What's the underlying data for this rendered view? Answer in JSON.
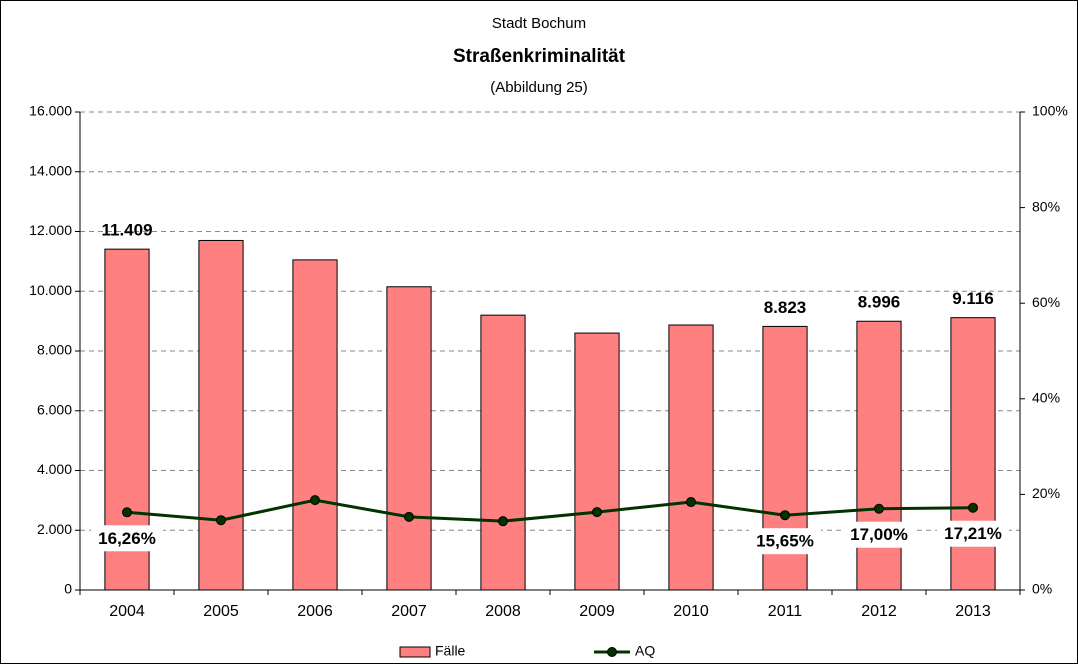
{
  "chart_data": {
    "type": "bar",
    "title": "Straßenkriminalität",
    "subtitle": "Stadt Bochum",
    "annotation": "(Abbildung 25)",
    "categories": [
      "2004",
      "2005",
      "2006",
      "2007",
      "2008",
      "2009",
      "2010",
      "2011",
      "2012",
      "2013"
    ],
    "series": [
      {
        "name": "Fälle",
        "type": "bar",
        "color": "#ff8080",
        "values": [
          11409,
          11700,
          11050,
          10150,
          9200,
          8600,
          8870,
          8823,
          8996,
          9116
        ],
        "value_labels": [
          "11.409",
          null,
          null,
          null,
          null,
          null,
          null,
          "8.823",
          "8.996",
          "9.116"
        ]
      },
      {
        "name": "AQ",
        "type": "line",
        "axis": "y2",
        "color": "#003300",
        "values": [
          16.26,
          14.6,
          18.8,
          15.3,
          14.4,
          16.3,
          18.4,
          15.65,
          17.0,
          17.21
        ],
        "value_labels": [
          "16,26%",
          null,
          null,
          null,
          null,
          null,
          null,
          "15,65%",
          "17,00%",
          "17,21%"
        ]
      }
    ],
    "ylim": [
      0,
      16000
    ],
    "yticks": [
      0,
      {
        "value": 2000,
        "label": "2.000"
      },
      {
        "value": 4000,
        "label": "4.000"
      },
      {
        "value": 6000,
        "label": "6.000"
      },
      {
        "value": 8000,
        "label": "8.000"
      },
      {
        "value": 10000,
        "label": "10.000"
      },
      {
        "value": 12000,
        "label": "12.000"
      },
      {
        "value": 14000,
        "label": "14.000"
      },
      {
        "value": 16000,
        "label": "16.000"
      }
    ],
    "y2lim": [
      0,
      100
    ],
    "y2ticks": [
      {
        "value": 0,
        "label": "0%"
      },
      {
        "value": 20,
        "label": "20%"
      },
      {
        "value": 40,
        "label": "40%"
      },
      {
        "value": 60,
        "label": "60%"
      },
      {
        "value": 80,
        "label": "80%"
      },
      {
        "value": 100,
        "label": "100%"
      }
    ],
    "grid": true,
    "legend": "bottom"
  }
}
